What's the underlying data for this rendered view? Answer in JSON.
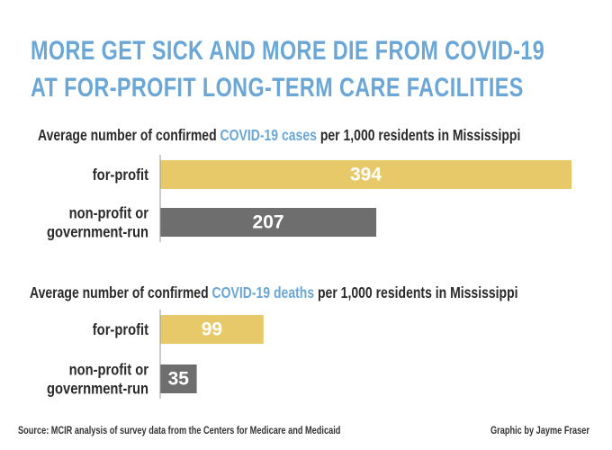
{
  "title_line1": "MORE GET SICK AND MORE DIE FROM COVID-19",
  "title_line2": "AT FOR-PROFIT LONG-TERM CARE FACILITIES",
  "colors": {
    "title": "#6aa6d6",
    "highlight": "#6aa6d6",
    "for_profit": "#e8c96a",
    "non_profit": "#6e6e6e",
    "label": "#2a2a2a",
    "value": "#ffffff"
  },
  "chart_data": [
    {
      "type": "bar",
      "orientation": "horizontal",
      "title_parts": [
        "Average number of confirmed ",
        "COVID-19 cases",
        " per 1,000 residents in Mississippi"
      ],
      "categories": [
        [
          "for-profit"
        ],
        [
          "non-profit or",
          "government-run"
        ]
      ],
      "values": [
        394,
        207
      ],
      "xlim": [
        0,
        394
      ]
    },
    {
      "type": "bar",
      "orientation": "horizontal",
      "title_parts": [
        "Average number of confirmed ",
        "COVID-19 deaths",
        " per 1,000 residents in Mississippi"
      ],
      "categories": [
        [
          "for-profit"
        ],
        [
          "non-profit or",
          "government-run"
        ]
      ],
      "values": [
        99,
        35
      ],
      "xlim": [
        0,
        394
      ]
    }
  ],
  "footer": {
    "source": "Source: MCIR analysis of survey data from the Centers for Medicare and Medicaid",
    "credit": "Graphic by Jayme Fraser"
  }
}
